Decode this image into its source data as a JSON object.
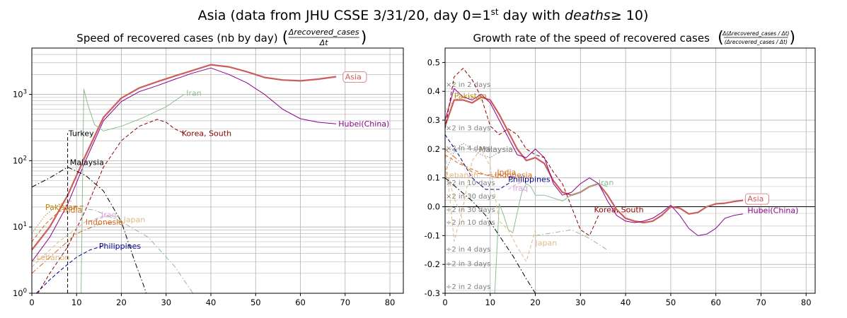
{
  "figure": {
    "title_main": "Asia (data from JHU CSSE 3/31/20, day 0=1",
    "title_sup": "st",
    "title_mid": " day with ",
    "title_math": "deaths",
    "title_tail": "≥ 10)"
  },
  "chart_data": [
    {
      "type": "line",
      "title": "Speed of recovered cases (nb by day)",
      "title_formula": {
        "numerator": "Δrecovered_cases",
        "denominator": "Δt"
      },
      "yscale": "log",
      "xlim": [
        0,
        83
      ],
      "ylim": [
        1,
        5000
      ],
      "x_ticks": [
        0,
        10,
        20,
        30,
        40,
        50,
        60,
        70,
        80
      ],
      "y_ticks": [
        {
          "value": 1,
          "label": "10",
          "exp": "0"
        },
        {
          "value": 10,
          "label": "10",
          "exp": "1"
        },
        {
          "value": 100,
          "label": "10",
          "exp": "2"
        },
        {
          "value": 1000,
          "label": "10",
          "exp": "3"
        }
      ],
      "grid": true,
      "series": [
        {
          "name": "Asia",
          "color": "#cd5c5c",
          "style": "solid",
          "width": 2.2,
          "x": [
            0,
            4,
            8,
            12,
            16,
            20,
            24,
            28,
            32,
            36,
            40,
            44,
            48,
            52,
            56,
            60,
            64,
            68
          ],
          "y": [
            4.5,
            10,
            30,
            120,
            450,
            880,
            1250,
            1550,
            1900,
            2300,
            2800,
            2600,
            2200,
            1800,
            1650,
            1600,
            1700,
            1850
          ],
          "label": {
            "text": "Asia",
            "x": 70,
            "y": 1850,
            "boxed": true
          }
        },
        {
          "name": "Hubei(China)",
          "color": "#8b008b",
          "style": "solid",
          "width": 1,
          "x": [
            0,
            4,
            8,
            12,
            16,
            20,
            24,
            28,
            32,
            36,
            40,
            44,
            48,
            52,
            56,
            60,
            64,
            68
          ],
          "y": [
            3,
            7,
            22,
            100,
            400,
            780,
            1100,
            1350,
            1700,
            2100,
            2500,
            2000,
            1500,
            1000,
            600,
            430,
            380,
            360
          ],
          "label": {
            "text": "Hubei(China)",
            "x": 68.5,
            "y": 360
          }
        },
        {
          "name": "Iran",
          "color": "#8fbc8f",
          "style": "solid",
          "width": 1,
          "x": [
            11,
            11.6,
            12.5,
            14,
            16,
            20,
            25,
            30,
            34
          ],
          "y": [
            1,
            1200,
            700,
            350,
            280,
            330,
            450,
            650,
            1000
          ],
          "label": {
            "text": "Iran",
            "x": 34.5,
            "y": 1050
          }
        },
        {
          "name": "Korea, South",
          "color": "#8b0000",
          "style": "dashed",
          "width": 1,
          "x": [
            0,
            4,
            8,
            12,
            16,
            20,
            24,
            28,
            30,
            32,
            34
          ],
          "y": [
            0.7,
            2,
            5,
            18,
            80,
            200,
            330,
            420,
            380,
            300,
            260
          ],
          "label": {
            "text": "Korea, South",
            "x": 33.5,
            "y": 260
          }
        },
        {
          "name": "Turkey",
          "color": "#000000",
          "style": "dashed",
          "width": 1,
          "x": [
            8,
            8,
            8
          ],
          "y": [
            1,
            60,
            260
          ],
          "label": {
            "text": "Turkey",
            "x": 8.2,
            "y": 260
          }
        },
        {
          "name": "Malaysia",
          "color": "#000000",
          "style": "dashdot",
          "width": 1,
          "x": [
            0,
            4,
            8,
            12,
            16,
            20,
            23,
            25,
            26
          ],
          "y": [
            40,
            55,
            80,
            60,
            35,
            12,
            3,
            1.3,
            0.8
          ],
          "label": {
            "text": "Malaysia",
            "x": 8.5,
            "y": 95
          }
        },
        {
          "name": "Pakistan",
          "color": "#b8860b",
          "style": "dotted",
          "width": 1,
          "x": [
            0,
            3,
            6,
            9
          ],
          "y": [
            8,
            15,
            22,
            25
          ],
          "label": {
            "text": "Pakistan",
            "x": 3,
            "y": 20
          }
        },
        {
          "name": "India",
          "color": "#d2691e",
          "style": "dashed",
          "width": 1,
          "x": [
            0,
            3,
            6,
            9,
            12
          ],
          "y": [
            6,
            11,
            17,
            20,
            21
          ],
          "label": {
            "text": "India",
            "x": 7,
            "y": 18
          }
        },
        {
          "name": "Indonesia",
          "color": "#d2691e",
          "style": "dashdot",
          "width": 1,
          "x": [
            0,
            5,
            10,
            15,
            20
          ],
          "y": [
            2,
            4,
            8,
            11,
            12
          ],
          "label": {
            "text": "Indonesia",
            "x": 12,
            "y": 12
          }
        },
        {
          "name": "Philippines",
          "color": "#00008b",
          "style": "dashed",
          "width": 1,
          "x": [
            1,
            4,
            7,
            10,
            13,
            16
          ],
          "y": [
            1,
            1.6,
            2.4,
            3.5,
            4.5,
            5.2
          ],
          "label": {
            "text": "Philippines",
            "x": 15,
            "y": 5.2
          }
        },
        {
          "name": "Iraq",
          "color": "#dda0dd",
          "style": "dashed",
          "width": 1,
          "x": [
            13,
            15,
            17
          ],
          "y": [
            12,
            14,
            15
          ],
          "label": {
            "text": "Iraq",
            "x": 15.5,
            "y": 15.5
          }
        },
        {
          "name": "Japan",
          "color": "#deb887",
          "style": "dashed",
          "width": 1,
          "x": [
            0,
            6,
            12,
            18,
            20
          ],
          "y": [
            2.5,
            6,
            12,
            15,
            14
          ],
          "label": {
            "text": "Japan",
            "x": 20.5,
            "y": 13
          }
        },
        {
          "name": "Lebanon",
          "color": "#deb887",
          "style": "dashed",
          "width": 1,
          "x": [
            0,
            4
          ],
          "y": [
            3,
            3.8
          ],
          "label": {
            "text": "Lebanon",
            "x": 1,
            "y": 3.5
          }
        },
        {
          "name": "Japan-trend",
          "color": "#8fbc8f",
          "style": "dashdot",
          "width": 1,
          "x": [
            8,
            14,
            20,
            26,
            32,
            36
          ],
          "y": [
            20,
            18,
            12,
            7,
            2.5,
            1
          ],
          "label": null
        }
      ]
    },
    {
      "type": "line",
      "title": "Growth rate of the speed of recovered cases",
      "title_formula": {
        "numerator": "Δ(Δrecovered_cases / Δt)",
        "denominator": "(Δrecovered_cases / Δt)"
      },
      "yscale": "linear",
      "xlim": [
        0,
        82
      ],
      "ylim": [
        -0.3,
        0.55
      ],
      "x_ticks": [
        0,
        10,
        20,
        30,
        40,
        50,
        60,
        70,
        80
      ],
      "y_ticks": [
        -0.3,
        -0.2,
        -0.1,
        0.0,
        0.1,
        0.2,
        0.3,
        0.4,
        0.5
      ],
      "grid": true,
      "reference_lines": [
        {
          "label": "×2 in 2 days",
          "y": 0.41
        },
        {
          "label": "×2 in 3 days",
          "y": 0.26
        },
        {
          "label": "×2 in 4 days",
          "y": 0.19
        },
        {
          "label": "×2 in 10 days",
          "y": 0.07
        },
        {
          "label": "×2 in 30 days",
          "y": 0.023
        },
        {
          "label": "÷2 in 30 days",
          "y": -0.023
        },
        {
          "label": "÷2 in 10 days",
          "y": -0.067
        },
        {
          "label": "÷2 in 4 days",
          "y": -0.16
        },
        {
          "label": "÷2 in 3 days",
          "y": -0.21
        },
        {
          "label": "÷2 in 2 days",
          "y": -0.29
        }
      ],
      "series": [
        {
          "name": "Asia",
          "color": "#cd5c5c",
          "style": "solid",
          "width": 2.2,
          "x": [
            0,
            2,
            4,
            6,
            8,
            10,
            12,
            14,
            16,
            18,
            20,
            22,
            24,
            26,
            28,
            30,
            32,
            34,
            36,
            38,
            40,
            42,
            44,
            46,
            48,
            50,
            52,
            54,
            56,
            58,
            60,
            62,
            64,
            66
          ],
          "y": [
            0.28,
            0.37,
            0.37,
            0.36,
            0.38,
            0.37,
            0.32,
            0.26,
            0.2,
            0.16,
            0.17,
            0.15,
            0.09,
            0.05,
            0.04,
            0.05,
            0.07,
            0.08,
            0.04,
            -0.01,
            -0.04,
            -0.05,
            -0.055,
            -0.05,
            -0.03,
            0.0,
            -0.005,
            -0.025,
            -0.02,
            0.0,
            0.01,
            0.012,
            0.018,
            0.022
          ],
          "label": {
            "text": "Asia",
            "x": 67,
            "y": 0.028,
            "boxed": true
          }
        },
        {
          "name": "Hubei(China)",
          "color": "#8b008b",
          "style": "solid",
          "width": 1,
          "x": [
            0,
            2,
            4,
            6,
            8,
            10,
            12,
            14,
            16,
            18,
            20,
            22,
            24,
            26,
            28,
            30,
            32,
            34,
            36,
            38,
            40,
            42,
            44,
            46,
            48,
            50,
            52,
            54,
            56,
            58,
            60,
            62,
            64,
            66
          ],
          "y": [
            0.3,
            0.41,
            0.38,
            0.37,
            0.39,
            0.36,
            0.3,
            0.24,
            0.18,
            0.17,
            0.2,
            0.17,
            0.08,
            0.04,
            0.05,
            0.08,
            0.1,
            0.08,
            0.02,
            -0.03,
            -0.05,
            -0.055,
            -0.05,
            -0.04,
            -0.02,
            0.005,
            -0.03,
            -0.075,
            -0.1,
            -0.095,
            -0.075,
            -0.04,
            -0.03,
            -0.025
          ],
          "label": {
            "text": "Hubei(China)",
            "x": 67,
            "y": -0.012
          }
        },
        {
          "name": "Korea, South",
          "color": "#8b0000",
          "style": "dashed",
          "width": 1,
          "x": [
            0,
            2,
            4,
            6,
            8,
            10,
            12,
            14,
            16,
            18,
            20,
            22,
            24,
            26,
            28,
            30,
            32,
            34
          ],
          "y": [
            0.27,
            0.45,
            0.48,
            0.44,
            0.38,
            0.28,
            0.25,
            0.27,
            0.25,
            0.2,
            0.18,
            0.17,
            0.12,
            0.08,
            0.0,
            -0.08,
            -0.1,
            -0.03
          ],
          "label": {
            "text": "Korea, South",
            "x": 33,
            "y": -0.01
          }
        },
        {
          "name": "Iran",
          "color": "#8fbc8f",
          "style": "solid",
          "width": 1,
          "x": [
            11,
            12,
            13,
            14,
            15,
            16,
            17,
            18,
            19,
            20,
            22,
            24,
            26,
            28,
            30,
            32,
            34,
            36
          ],
          "y": [
            -0.3,
            0.01,
            -0.03,
            -0.08,
            -0.09,
            -0.02,
            0.05,
            0.08,
            0.07,
            0.04,
            0.04,
            0.03,
            0.02,
            0.04,
            0.05,
            0.07,
            0.08,
            0.07
          ],
          "label": {
            "text": "Iran",
            "x": 34,
            "y": 0.085
          }
        },
        {
          "name": "Malaysia",
          "color": "#808080",
          "style": "dotted",
          "width": 1,
          "x": [
            0,
            2,
            4,
            6,
            8,
            10,
            12
          ],
          "y": [
            0.12,
            0.19,
            0.22,
            0.2,
            0.18,
            0.17,
            0.19
          ],
          "label": {
            "text": "Malaysia",
            "x": 7.5,
            "y": 0.2
          }
        },
        {
          "name": "Pakistan",
          "color": "#b8860b",
          "style": "dotted",
          "width": 1,
          "x": [
            0,
            2,
            4,
            6,
            8
          ],
          "y": [
            0.33,
            0.37,
            0.38,
            0.38,
            0.37
          ],
          "label": {
            "text": "Pakistan",
            "x": 2,
            "y": 0.385
          }
        },
        {
          "name": "India",
          "color": "#d2691e",
          "style": "dashed",
          "width": 1,
          "x": [
            0,
            3,
            6,
            9,
            12
          ],
          "y": [
            0.18,
            0.15,
            0.13,
            0.11,
            0.1
          ],
          "label": {
            "text": "India",
            "x": 11.5,
            "y": 0.12
          }
        },
        {
          "name": "Indonesia",
          "color": "#d2691e",
          "style": "dashdot",
          "width": 1,
          "x": [
            0,
            3,
            6,
            9,
            12,
            15
          ],
          "y": [
            0.2,
            0.16,
            0.12,
            0.11,
            0.11,
            0.1
          ],
          "label": {
            "text": "Indonesia",
            "x": 11,
            "y": 0.11
          }
        },
        {
          "name": "Philippines",
          "color": "#00008b",
          "style": "dashed",
          "width": 1,
          "x": [
            0,
            3,
            6,
            9,
            12,
            15
          ],
          "y": [
            0.25,
            0.18,
            0.1,
            0.06,
            0.06,
            0.09
          ],
          "label": {
            "text": "Philippines",
            "x": 14,
            "y": 0.095
          }
        },
        {
          "name": "Iraq",
          "color": "#dda0dd",
          "style": "dashed",
          "width": 1,
          "x": [
            14,
            16,
            18
          ],
          "y": [
            0.06,
            0.08,
            0.09
          ],
          "label": {
            "text": "Iraq",
            "x": 15,
            "y": 0.065
          }
        },
        {
          "name": "Japan",
          "color": "#deb887",
          "style": "dashed",
          "width": 1,
          "x": [
            0,
            2,
            4,
            6,
            8,
            10,
            12,
            14,
            16,
            18,
            20
          ],
          "y": [
            0.2,
            -0.12,
            0.0,
            0.16,
            0.2,
            0.14,
            -0.05,
            -0.08,
            -0.14,
            -0.19,
            -0.08
          ],
          "label": {
            "text": "Japan",
            "x": 20,
            "y": -0.125
          }
        },
        {
          "name": "Lebanon",
          "color": "#deb887",
          "style": "dashed",
          "width": 1,
          "x": [
            0,
            2,
            4
          ],
          "y": [
            0.14,
            0.03,
            -0.05
          ],
          "label": {
            "text": "Lebanon",
            "x": 0,
            "y": 0.11
          }
        },
        {
          "name": "Turkey",
          "color": "#000000",
          "style": "dashdot",
          "width": 1,
          "x": [
            0,
            3,
            6,
            9,
            12,
            15,
            18,
            20
          ],
          "y": [
            0.1,
            0.06,
            0.02,
            -0.03,
            -0.1,
            -0.17,
            -0.25,
            -0.3
          ],
          "label": null
        },
        {
          "name": "Japan-trend",
          "color": "#8fbc8f",
          "style": "dashdot",
          "width": 1,
          "x": [
            20,
            24,
            28,
            32,
            36
          ],
          "y": [
            -0.1,
            -0.09,
            -0.08,
            -0.11,
            -0.15
          ],
          "label": null
        }
      ]
    }
  ]
}
